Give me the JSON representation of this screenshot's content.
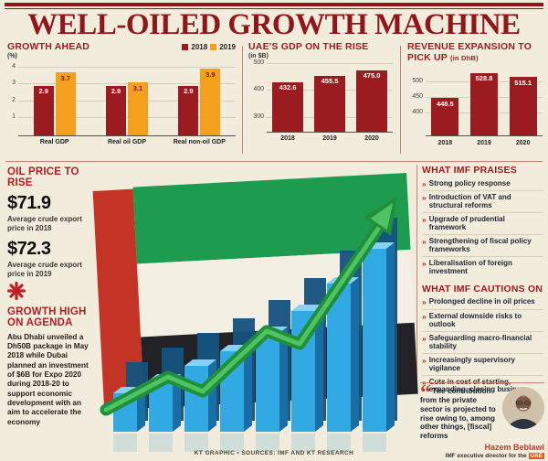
{
  "colors": {
    "dark_red": "#9b1c20",
    "orange": "#f3a11c",
    "arrow_green": "#2aa84c",
    "bar_blue": "#31a9e2"
  },
  "header": {
    "title": "WELL-OILED GROWTH MACHINE"
  },
  "chart_data": [
    {
      "type": "bar",
      "title": "GROWTH AHEAD",
      "unit": "(%)",
      "categories": [
        "Real GDP",
        "Real oil GDP",
        "Real non-oil GDP"
      ],
      "series": [
        {
          "name": "2018",
          "color": "#9b1c20",
          "label_color": "#ffffff",
          "values": [
            2.9,
            2.9,
            2.9
          ],
          "labels": [
            "2.9",
            "2.9",
            "2.9"
          ]
        },
        {
          "name": "2019",
          "color": "#f3a11c",
          "label_color": "#7a1418",
          "values": [
            3.7,
            3.1,
            3.9
          ],
          "labels": [
            "3.7",
            "3.1",
            "3.9"
          ]
        }
      ],
      "yticks": [
        1,
        2,
        3,
        4
      ],
      "ylim": [
        0,
        4
      ],
      "legend_position": "top-right"
    },
    {
      "type": "bar",
      "title": "UAE'S GDP ON THE RISE",
      "unit": "(in $B)",
      "categories": [
        "2018",
        "2019",
        "2020"
      ],
      "series": [
        {
          "name": "GDP",
          "color": "#9b1c20",
          "label_color": "#ffffff",
          "values": [
            432.6,
            455.5,
            475.0
          ],
          "labels": [
            "432.6",
            "455.5",
            "475.0"
          ]
        }
      ],
      "yticks": [
        300,
        400,
        500
      ],
      "ylim": [
        250,
        500
      ]
    },
    {
      "type": "bar",
      "title": "REVENUE EXPANSION TO PICK UP",
      "unit": "(in DhB)",
      "categories": [
        "2018",
        "2019",
        "2020"
      ],
      "series": [
        {
          "name": "Revenue",
          "color": "#9b1c20",
          "label_color": "#ffffff",
          "values": [
            448.5,
            528.8,
            515.1
          ],
          "labels": [
            "448.5",
            "528.8",
            "515.1"
          ]
        }
      ],
      "yticks": [
        400,
        450,
        500
      ],
      "ylim": [
        330,
        545
      ]
    }
  ],
  "oil_price": {
    "title": "OIL PRICE TO RISE",
    "items": [
      {
        "value": "$71.9",
        "caption": "Average crude export price in 2018"
      },
      {
        "value": "$72.3",
        "caption": "Average crude export price in 2019"
      }
    ]
  },
  "growth_agenda": {
    "title": "GROWTH HIGH ON AGENDA",
    "body": "Abu Dhabi unveiled a Dh50B package in May 2018 while Dubai planned an investment of $6B for Expo 2020 during 2018-20 to support economic development with an aim to accelerate the economy"
  },
  "imf_praises": {
    "title": "WHAT IMF PRAISES",
    "items": [
      "Strong policy response",
      "Introduction of VAT and structural reforms",
      "Upgrade of prudential framework",
      "Strengthening of fiscal policy frameworks",
      "Liberalisation of foreign investment"
    ]
  },
  "imf_cautions": {
    "title": "WHAT IMF CAUTIONS ON",
    "items": [
      "Prolonged decline in oil prices",
      "External downside risks to outlook",
      "Safeguarding macro-financial stability",
      "Increasingly supervisory vigilance",
      "Cuts in cost of starting, expanding, closing business"
    ]
  },
  "quote": {
    "mark": "“",
    "text": "The contribution from the private sector is projected to rise owing to, among other things, [fiscal] reforms",
    "author": "Hazem Beblawi",
    "role": "IMF executive director for the",
    "role_highlight": "UAE"
  },
  "footer": {
    "credit": "KT GRAPHIC • SOURCES: IMF AND KT RESEARCH"
  }
}
